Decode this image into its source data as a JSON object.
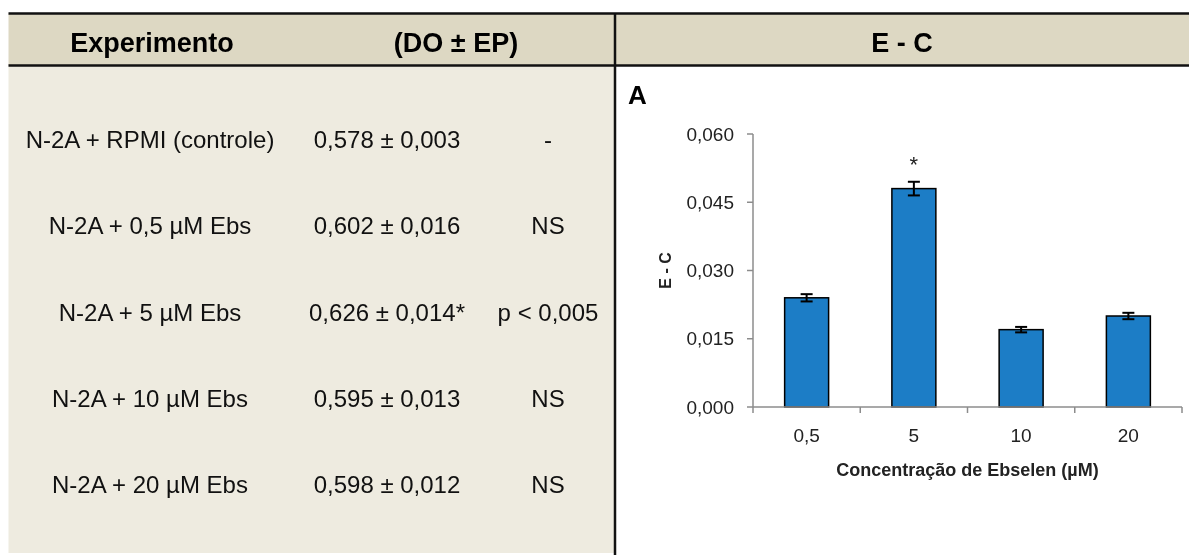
{
  "chart_data": [
    {
      "type": "other",
      "annotations": [
        "Experimento",
        "(DO ± EP)",
        "N-2A + RPMI (controle)",
        "0,578 ± 0,003",
        "-",
        "N-2A + 0,5 µM Ebs",
        "0,602 ± 0,016",
        "NS",
        "N-2A + 5 µM Ebs",
        "0,626 ± 0,014*",
        "p < 0,005",
        "N-2A + 10 µM Ebs",
        "0,595 ± 0,013",
        "NS",
        "N-2A + 20 µM Ebs",
        "0,598 ± 0,012",
        "NS"
      ]
    },
    {
      "type": "bar",
      "title": "E - C",
      "xlabel": "Concentração de Ebselen (µM)",
      "ylabel": "E - C",
      "categories": [
        "0,5",
        "5",
        "10",
        "20"
      ],
      "values": [
        0.024,
        0.048,
        0.017,
        0.02
      ],
      "errors": [
        0.0008,
        0.0015,
        0.0006,
        0.0007
      ],
      "color": "#1c7dc6",
      "ylim": [
        0,
        0.06
      ],
      "yticks": [
        {
          "value": 0,
          "label": "0,000"
        },
        {
          "value": 0.015,
          "label": "0,015"
        },
        {
          "value": 0.03,
          "label": "0,030"
        },
        {
          "value": 0.045,
          "label": "0,045"
        },
        {
          "value": 0.06,
          "label": "0,060"
        }
      ],
      "annotations": [
        "A",
        {
          "text": "*",
          "x": "5",
          "y": 0.048
        }
      ]
    }
  ]
}
